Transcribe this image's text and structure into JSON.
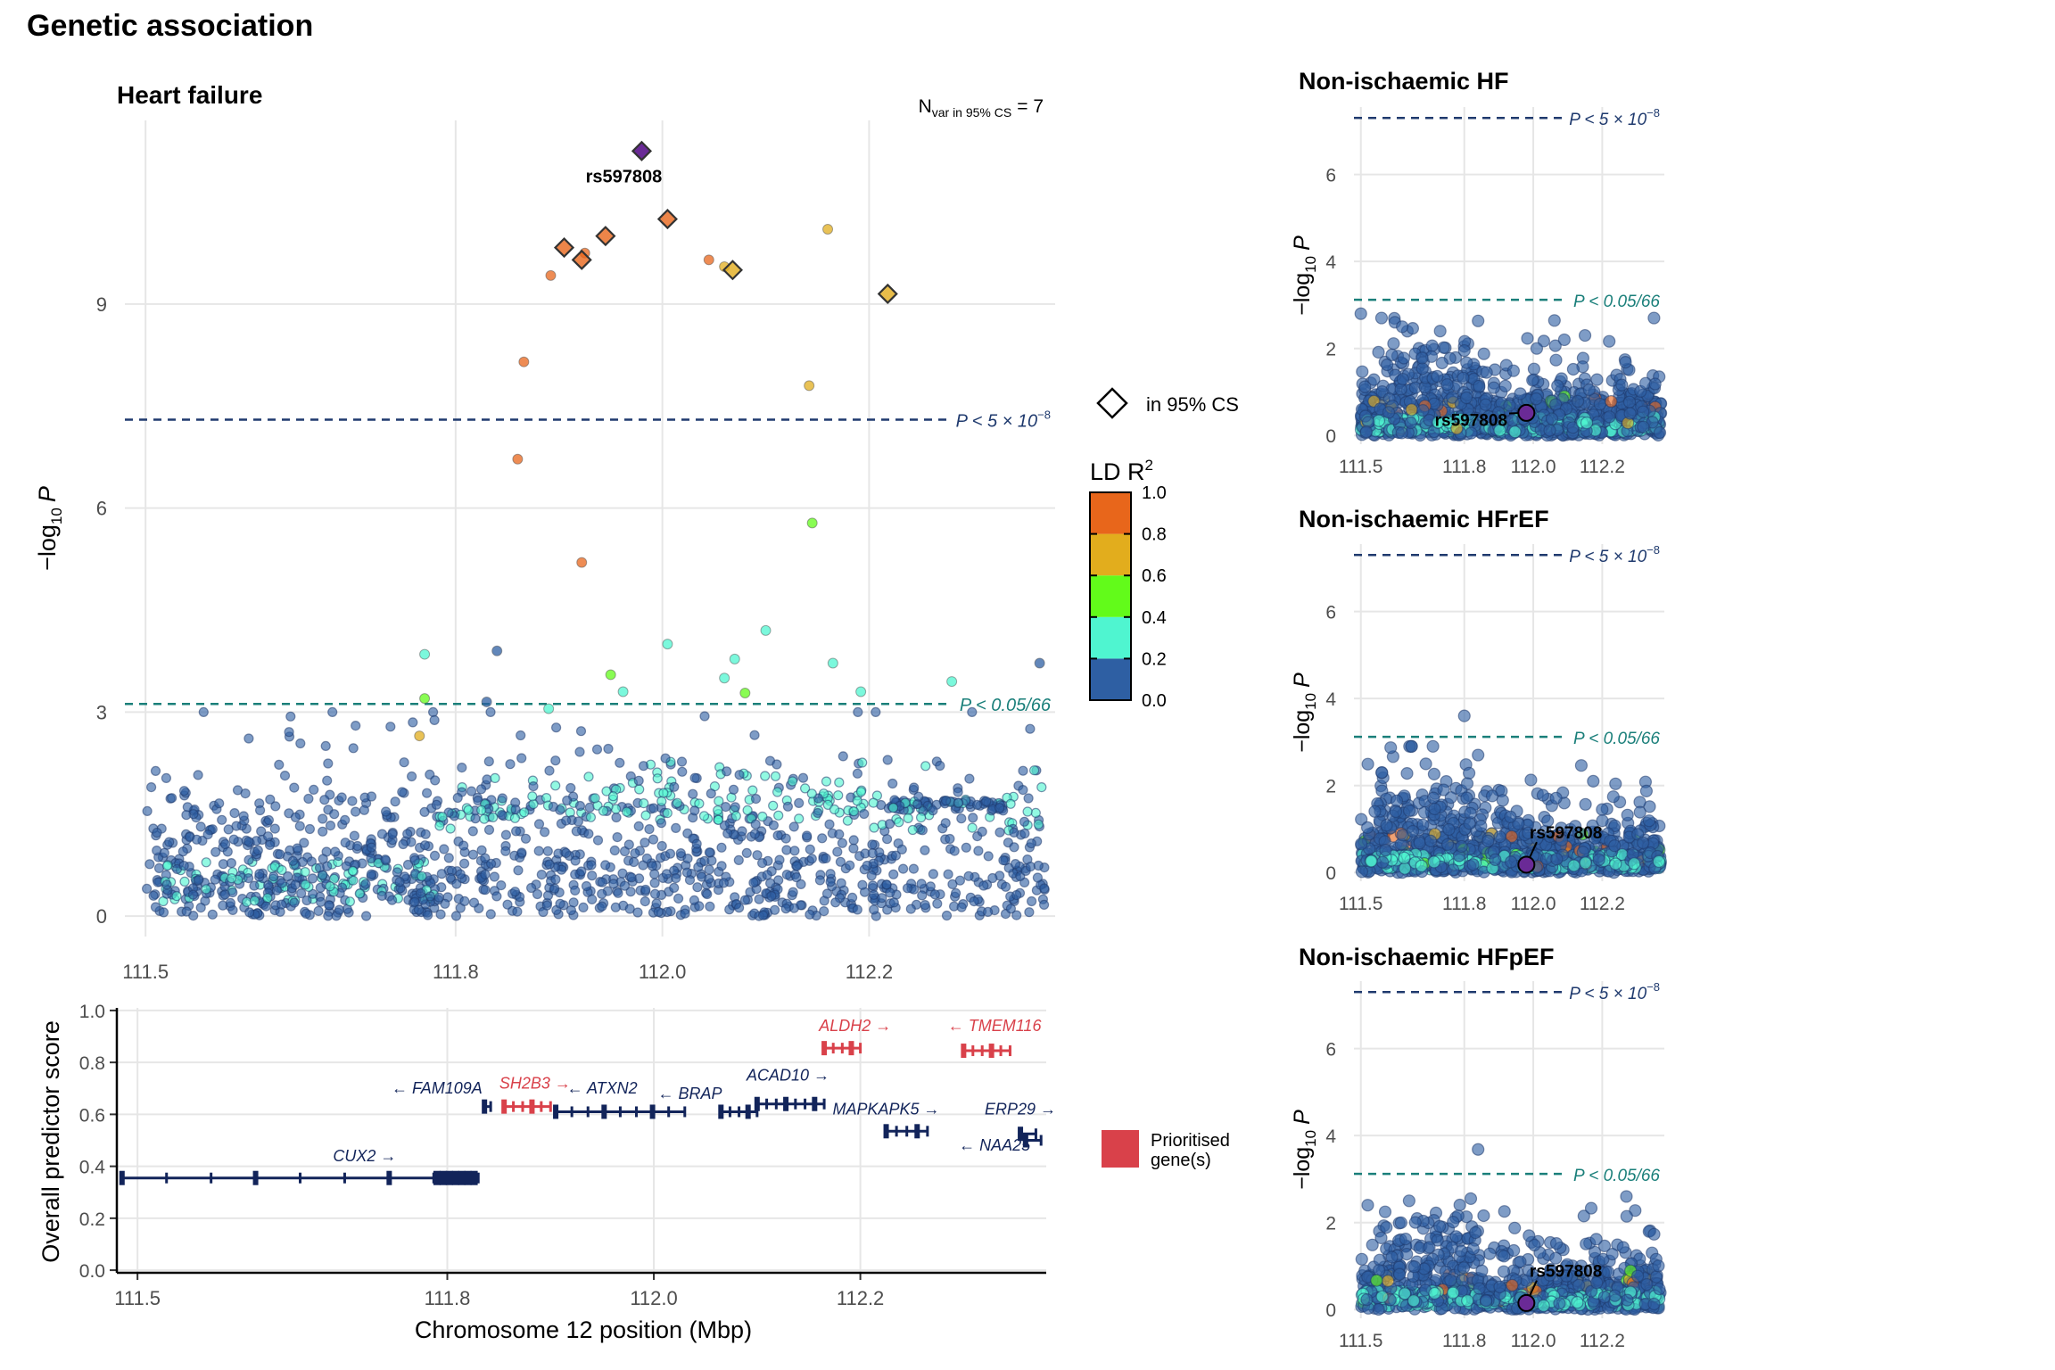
{
  "figure_title": "Genetic association",
  "colors": {
    "ld_bins": [
      "#2e5fa3",
      "#4ff5d0",
      "#62fb1a",
      "#e2ad1d",
      "#e8661b"
    ],
    "lead": "#6a2a96",
    "gw_line": "#1f3a6e",
    "bonf_line": "#1a7f7a",
    "gene_default": "#12245a",
    "gene_prioritised": "#d9414a"
  },
  "icons": {
    "credible_set_marker": "diamond-outline-icon",
    "prioritised_swatch": "red-square-icon"
  },
  "thresholds": {
    "gw_label": "P < 5 × 10",
    "gw_exp": "−8",
    "bonf_label": "P < 0.05/66"
  },
  "legend": {
    "cs_label": "in 95% CS",
    "ld_title": "LD R",
    "ld_ticks": [
      "1.0",
      "0.8",
      "0.6",
      "0.4",
      "0.2",
      "0.0"
    ],
    "prioritised_label": [
      "Prioritised",
      "gene(s)"
    ]
  },
  "chart_data": [
    {
      "id": "main",
      "type": "scatter",
      "title": "Heart failure",
      "annotation": {
        "label": "N",
        "sub": "var in 95% CS",
        "value": "= 7"
      },
      "xlabel": "",
      "ylabel": "−log",
      "ylabel_sub": "10",
      "ylabel_tail": "P",
      "xlim": [
        111.48,
        112.38
      ],
      "ylim": [
        -0.3,
        11.7
      ],
      "xticks": [
        "111.5",
        "111.8",
        "112.0",
        "112.2"
      ],
      "yticks": [
        "0",
        "3",
        "6",
        "9"
      ],
      "thresholds": [
        7.3,
        3.12
      ],
      "lead_snp": {
        "label": "rs597808",
        "x": 111.98,
        "y": 11.25
      },
      "credible_set": [
        {
          "x": 111.98,
          "y": 11.25,
          "ld": 1.0
        },
        {
          "x": 112.005,
          "y": 10.25,
          "ld": 0.9
        },
        {
          "x": 111.945,
          "y": 10.0,
          "ld": 0.9
        },
        {
          "x": 111.905,
          "y": 9.83,
          "ld": 0.9
        },
        {
          "x": 111.922,
          "y": 9.65,
          "ld": 0.9
        },
        {
          "x": 112.068,
          "y": 9.5,
          "ld": 0.7
        },
        {
          "x": 112.218,
          "y": 9.15,
          "ld": 0.7
        }
      ],
      "highlight_points": [
        {
          "x": 112.16,
          "y": 10.1,
          "ld": 0.7
        },
        {
          "x": 111.925,
          "y": 9.75,
          "ld": 0.8
        },
        {
          "x": 112.045,
          "y": 9.65,
          "ld": 0.9
        },
        {
          "x": 112.06,
          "y": 9.55,
          "ld": 0.7
        },
        {
          "x": 111.892,
          "y": 9.42,
          "ld": 0.9
        },
        {
          "x": 111.866,
          "y": 8.15,
          "ld": 0.9
        },
        {
          "x": 112.142,
          "y": 7.8,
          "ld": 0.7
        },
        {
          "x": 111.86,
          "y": 6.72,
          "ld": 0.9
        },
        {
          "x": 112.145,
          "y": 5.78,
          "ld": 0.5
        },
        {
          "x": 111.922,
          "y": 5.2,
          "ld": 0.9
        },
        {
          "x": 112.1,
          "y": 4.2,
          "ld": 0.3
        },
        {
          "x": 112.005,
          "y": 4.0,
          "ld": 0.3
        },
        {
          "x": 111.77,
          "y": 3.85,
          "ld": 0.3
        },
        {
          "x": 112.07,
          "y": 3.78,
          "ld": 0.3
        },
        {
          "x": 112.165,
          "y": 3.72,
          "ld": 0.3
        },
        {
          "x": 111.95,
          "y": 3.55,
          "ld": 0.5
        },
        {
          "x": 112.06,
          "y": 3.5,
          "ld": 0.3
        },
        {
          "x": 112.28,
          "y": 3.45,
          "ld": 0.3
        },
        {
          "x": 111.962,
          "y": 3.3,
          "ld": 0.3
        },
        {
          "x": 112.08,
          "y": 3.28,
          "ld": 0.5
        },
        {
          "x": 111.77,
          "y": 3.2,
          "ld": 0.5
        },
        {
          "x": 111.765,
          "y": 2.65,
          "ld": 0.7
        },
        {
          "x": 112.192,
          "y": 3.3,
          "ld": 0.3
        },
        {
          "x": 111.89,
          "y": 3.05,
          "ld": 0.3
        },
        {
          "x": 111.84,
          "y": 3.9,
          "ld": 0.1
        },
        {
          "x": 111.83,
          "y": 3.15,
          "ld": 0.1
        },
        {
          "x": 112.365,
          "y": 3.72,
          "ld": 0.1
        }
      ],
      "random_seed": 7,
      "background_count": 1400
    },
    {
      "id": "genes",
      "type": "gene_track",
      "xlabel": "Chromosome 12 position (Mbp)",
      "ylabel": "Overall predictor score",
      "xlim": [
        111.48,
        112.38
      ],
      "ylim": [
        -0.01,
        1.01
      ],
      "xticks": [
        "111.5",
        "111.8",
        "112.0",
        "112.2"
      ],
      "yticks": [
        "0.0",
        "0.2",
        "0.4",
        "0.6",
        "0.8",
        "1.0"
      ],
      "genes": [
        {
          "name": "CUX2",
          "dir": "→",
          "start": 111.485,
          "end": 111.83,
          "score": 0.355,
          "prioritised": false,
          "label_x": 111.72,
          "label_y": 0.42
        },
        {
          "name": "FAM109A",
          "dir": "←",
          "start": 111.836,
          "end": 111.842,
          "score": 0.63,
          "prioritised": false,
          "label_x": 111.79,
          "label_y": 0.68
        },
        {
          "name": "SH2B3",
          "dir": "→",
          "start": 111.855,
          "end": 111.9,
          "score": 0.63,
          "prioritised": true,
          "label_x": 111.885,
          "label_y": 0.7
        },
        {
          "name": "ATXN2",
          "dir": "←",
          "start": 111.905,
          "end": 112.03,
          "score": 0.61,
          "prioritised": false,
          "label_x": 111.95,
          "label_y": 0.68
        },
        {
          "name": "BRAP",
          "dir": "←",
          "start": 112.065,
          "end": 112.1,
          "score": 0.61,
          "prioritised": false,
          "label_x": 112.035,
          "label_y": 0.66
        },
        {
          "name": "ACAD10",
          "dir": "→",
          "start": 112.1,
          "end": 112.165,
          "score": 0.64,
          "prioritised": false,
          "label_x": 112.13,
          "label_y": 0.73
        },
        {
          "name": "ALDH2",
          "dir": "→",
          "start": 112.165,
          "end": 112.2,
          "score": 0.855,
          "prioritised": true,
          "label_x": 112.195,
          "label_y": 0.92
        },
        {
          "name": "TMEM116",
          "dir": "←",
          "start": 112.3,
          "end": 112.345,
          "score": 0.845,
          "prioritised": true,
          "label_x": 112.33,
          "label_y": 0.92
        },
        {
          "name": "MAPKAPK5",
          "dir": "→",
          "start": 112.225,
          "end": 112.265,
          "score": 0.535,
          "prioritised": false,
          "label_x": 112.225,
          "label_y": 0.6
        },
        {
          "name": "ERP29",
          "dir": "→",
          "start": 112.355,
          "end": 112.37,
          "score": 0.525,
          "prioritised": false,
          "label_x": 112.355,
          "label_y": 0.6
        },
        {
          "name": "NAA25",
          "dir": "←",
          "start": 112.36,
          "end": 112.375,
          "score": 0.5,
          "prioritised": false,
          "label_x": 112.33,
          "label_y": 0.46
        }
      ]
    },
    {
      "id": "side1",
      "type": "scatter",
      "title": "Non-ischaemic HF",
      "xlabel": "",
      "ylabel": "−log",
      "ylabel_sub": "10",
      "ylabel_tail": "P",
      "xlim": [
        111.48,
        112.38
      ],
      "ylim": [
        -0.2,
        7.55
      ],
      "xticks": [
        "111.5",
        "111.8",
        "112.0",
        "112.2"
      ],
      "yticks": [
        "0",
        "2",
        "4",
        "6"
      ],
      "thresholds": [
        7.3,
        3.12
      ],
      "lead_snp": {
        "label": "rs597808",
        "x": 111.98,
        "y": 0.52,
        "label_dx": -0.05,
        "label_dy": -0.3
      },
      "random_seed": 11,
      "background_count": 1250
    },
    {
      "id": "side2",
      "type": "scatter",
      "title": "Non-ischaemic HFrEF",
      "xlabel": "",
      "ylabel": "−log",
      "ylabel_sub": "10",
      "ylabel_tail": "P",
      "xlim": [
        111.48,
        112.38
      ],
      "ylim": [
        -0.2,
        7.55
      ],
      "xticks": [
        "111.5",
        "111.8",
        "112.0",
        "112.2"
      ],
      "yticks": [
        "0",
        "2",
        "4",
        "6"
      ],
      "thresholds": [
        7.3,
        3.12
      ],
      "lead_snp": {
        "label": "rs597808",
        "x": 111.98,
        "y": 0.18,
        "label_dx": 0.03,
        "label_dy": 0.6
      },
      "random_seed": 23,
      "background_count": 1150
    },
    {
      "id": "side3",
      "type": "scatter",
      "title": "Non-ischaemic HFpEF",
      "xlabel": "",
      "ylabel": "−log",
      "ylabel_sub": "10",
      "ylabel_tail": "P",
      "xlim": [
        111.48,
        112.38
      ],
      "ylim": [
        -0.2,
        7.55
      ],
      "xticks": [
        "111.5",
        "111.8",
        "112.0",
        "112.2"
      ],
      "yticks": [
        "0",
        "2",
        "4",
        "6"
      ],
      "thresholds": [
        7.3,
        3.12
      ],
      "lead_snp": {
        "label": "rs597808",
        "x": 111.98,
        "y": 0.15,
        "label_dx": 0.03,
        "label_dy": 0.6
      },
      "random_seed": 37,
      "background_count": 1050
    }
  ]
}
